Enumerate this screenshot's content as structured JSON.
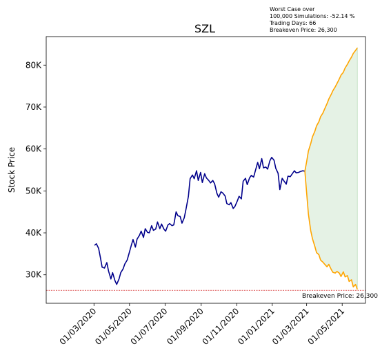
{
  "chart_data": {
    "type": "line",
    "title": "SZL",
    "xlabel": "",
    "ylabel": "Stock Price",
    "info_lines": [
      "Worst Case over",
      "100,000 Simulations: -52.14 %",
      "Trading Days: 66",
      "Breakeven Price: 26,300"
    ],
    "breakeven": {
      "value": 26300,
      "label": "Breakeven Price: 26,300",
      "color": "#cc0000"
    },
    "ylim": [
      23200,
      86800
    ],
    "xlim": [
      "2019-12-10",
      "2021-06-10"
    ],
    "y_ticks": [
      {
        "value": 30000,
        "label": "30K"
      },
      {
        "value": 40000,
        "label": "40K"
      },
      {
        "value": 50000,
        "label": "50K"
      },
      {
        "value": 60000,
        "label": "60K"
      },
      {
        "value": 70000,
        "label": "70K"
      },
      {
        "value": 80000,
        "label": "80K"
      }
    ],
    "x_ticks": [
      {
        "date": "2020-03-01",
        "label": "01/03/2020"
      },
      {
        "date": "2020-05-01",
        "label": "01/05/2020"
      },
      {
        "date": "2020-07-01",
        "label": "01/07/2020"
      },
      {
        "date": "2020-09-01",
        "label": "01/09/2020"
      },
      {
        "date": "2020-11-01",
        "label": "01/11/2020"
      },
      {
        "date": "2021-01-01",
        "label": "01/01/2021"
      },
      {
        "date": "2021-03-01",
        "label": "01/03/2021"
      },
      {
        "date": "2021-05-01",
        "label": "01/05/2021"
      }
    ],
    "series": [
      {
        "color": "#00008b",
        "points": [
          [
            "2020-03-02",
            37000
          ],
          [
            "2020-03-05",
            37400
          ],
          [
            "2020-03-09",
            36300
          ],
          [
            "2020-03-12",
            34100
          ],
          [
            "2020-03-15",
            31800
          ],
          [
            "2020-03-19",
            31600
          ],
          [
            "2020-03-23",
            32900
          ],
          [
            "2020-03-26",
            30900
          ],
          [
            "2020-03-30",
            29000
          ],
          [
            "2020-04-02",
            30500
          ],
          [
            "2020-04-06",
            28600
          ],
          [
            "2020-04-09",
            27700
          ],
          [
            "2020-04-13",
            29000
          ],
          [
            "2020-04-16",
            30500
          ],
          [
            "2020-04-20",
            31400
          ],
          [
            "2020-04-23",
            32600
          ],
          [
            "2020-04-27",
            33500
          ],
          [
            "2020-04-30",
            35000
          ],
          [
            "2020-05-04",
            37000
          ],
          [
            "2020-05-07",
            38400
          ],
          [
            "2020-05-11",
            36600
          ],
          [
            "2020-05-14",
            38500
          ],
          [
            "2020-05-18",
            39400
          ],
          [
            "2020-05-21",
            40400
          ],
          [
            "2020-05-25",
            38900
          ],
          [
            "2020-05-28",
            41000
          ],
          [
            "2020-06-01",
            40100
          ],
          [
            "2020-06-04",
            40000
          ],
          [
            "2020-06-08",
            41700
          ],
          [
            "2020-06-11",
            40600
          ],
          [
            "2020-06-15",
            40900
          ],
          [
            "2020-06-18",
            42600
          ],
          [
            "2020-06-22",
            41000
          ],
          [
            "2020-06-25",
            42100
          ],
          [
            "2020-06-29",
            40900
          ],
          [
            "2020-07-02",
            40400
          ],
          [
            "2020-07-06",
            41900
          ],
          [
            "2020-07-09",
            42200
          ],
          [
            "2020-07-13",
            41700
          ],
          [
            "2020-07-16",
            41900
          ],
          [
            "2020-07-20",
            45000
          ],
          [
            "2020-07-23",
            44100
          ],
          [
            "2020-07-27",
            43900
          ],
          [
            "2020-07-30",
            42300
          ],
          [
            "2020-08-03",
            43600
          ],
          [
            "2020-08-06",
            45700
          ],
          [
            "2020-08-10",
            48700
          ],
          [
            "2020-08-13",
            52900
          ],
          [
            "2020-08-17",
            53800
          ],
          [
            "2020-08-20",
            52900
          ],
          [
            "2020-08-24",
            54800
          ],
          [
            "2020-08-27",
            52500
          ],
          [
            "2020-08-31",
            54400
          ],
          [
            "2020-09-03",
            52000
          ],
          [
            "2020-09-07",
            54100
          ],
          [
            "2020-09-10",
            53100
          ],
          [
            "2020-09-14",
            52500
          ],
          [
            "2020-09-17",
            51900
          ],
          [
            "2020-09-21",
            52500
          ],
          [
            "2020-09-24",
            51700
          ],
          [
            "2020-09-28",
            49400
          ],
          [
            "2020-10-01",
            48500
          ],
          [
            "2020-10-05",
            49800
          ],
          [
            "2020-10-08",
            49500
          ],
          [
            "2020-10-12",
            48800
          ],
          [
            "2020-10-15",
            47000
          ],
          [
            "2020-10-19",
            46700
          ],
          [
            "2020-10-22",
            47200
          ],
          [
            "2020-10-26",
            45800
          ],
          [
            "2020-10-29",
            46300
          ],
          [
            "2020-11-02",
            47600
          ],
          [
            "2020-11-05",
            48700
          ],
          [
            "2020-11-09",
            48100
          ],
          [
            "2020-11-12",
            52300
          ],
          [
            "2020-11-16",
            53000
          ],
          [
            "2020-11-19",
            51500
          ],
          [
            "2020-11-23",
            53100
          ],
          [
            "2020-11-26",
            53700
          ],
          [
            "2020-11-30",
            53300
          ],
          [
            "2020-12-03",
            54800
          ],
          [
            "2020-12-07",
            56800
          ],
          [
            "2020-12-10",
            55300
          ],
          [
            "2020-12-14",
            57700
          ],
          [
            "2020-12-17",
            55500
          ],
          [
            "2020-12-21",
            55700
          ],
          [
            "2020-12-24",
            55200
          ],
          [
            "2020-12-28",
            57200
          ],
          [
            "2020-12-31",
            58000
          ],
          [
            "2021-01-04",
            57300
          ],
          [
            "2021-01-07",
            55400
          ],
          [
            "2021-01-11",
            54200
          ],
          [
            "2021-01-14",
            50300
          ],
          [
            "2021-01-18",
            53000
          ],
          [
            "2021-01-21",
            52400
          ],
          [
            "2021-01-25",
            51600
          ],
          [
            "2021-01-28",
            53500
          ],
          [
            "2021-02-01",
            53400
          ],
          [
            "2021-02-04",
            54000
          ],
          [
            "2021-02-08",
            54800
          ],
          [
            "2021-02-11",
            54300
          ],
          [
            "2021-02-15",
            54400
          ],
          [
            "2021-02-18",
            54600
          ],
          [
            "2021-02-22",
            54800
          ],
          [
            "2021-02-26",
            54700
          ]
        ]
      },
      {
        "color": "#ffa500",
        "points": [
          [
            "2021-02-26",
            54700
          ],
          [
            "2021-03-01",
            57000
          ],
          [
            "2021-03-04",
            59500
          ],
          [
            "2021-03-08",
            61300
          ],
          [
            "2021-03-11",
            62900
          ],
          [
            "2021-03-15",
            64200
          ],
          [
            "2021-03-18",
            65500
          ],
          [
            "2021-03-22",
            66500
          ],
          [
            "2021-03-25",
            67700
          ],
          [
            "2021-03-29",
            68600
          ],
          [
            "2021-04-01",
            69600
          ],
          [
            "2021-04-05",
            70800
          ],
          [
            "2021-04-08",
            71900
          ],
          [
            "2021-04-12",
            73000
          ],
          [
            "2021-04-15",
            73900
          ],
          [
            "2021-04-19",
            74800
          ],
          [
            "2021-04-22",
            75600
          ],
          [
            "2021-04-26",
            76700
          ],
          [
            "2021-04-29",
            77600
          ],
          [
            "2021-05-03",
            78300
          ],
          [
            "2021-05-06",
            79300
          ],
          [
            "2021-05-10",
            80200
          ],
          [
            "2021-05-13",
            81000
          ],
          [
            "2021-05-17",
            81900
          ],
          [
            "2021-05-20",
            82800
          ],
          [
            "2021-05-24",
            83500
          ],
          [
            "2021-05-27",
            84100
          ]
        ]
      },
      {
        "color": "#ffa500",
        "points": [
          [
            "2021-02-26",
            54700
          ],
          [
            "2021-03-01",
            49500
          ],
          [
            "2021-03-04",
            44500
          ],
          [
            "2021-03-08",
            40500
          ],
          [
            "2021-03-11",
            38600
          ],
          [
            "2021-03-15",
            36800
          ],
          [
            "2021-03-18",
            35300
          ],
          [
            "2021-03-22",
            34800
          ],
          [
            "2021-03-25",
            33500
          ],
          [
            "2021-03-29",
            33000
          ],
          [
            "2021-04-01",
            32500
          ],
          [
            "2021-04-05",
            31900
          ],
          [
            "2021-04-08",
            32500
          ],
          [
            "2021-04-12",
            31300
          ],
          [
            "2021-04-15",
            30600
          ],
          [
            "2021-04-19",
            30400
          ],
          [
            "2021-04-22",
            30800
          ],
          [
            "2021-04-26",
            30400
          ],
          [
            "2021-04-29",
            29600
          ],
          [
            "2021-05-03",
            30700
          ],
          [
            "2021-05-06",
            29500
          ],
          [
            "2021-05-10",
            29800
          ],
          [
            "2021-05-13",
            28400
          ],
          [
            "2021-05-17",
            28800
          ],
          [
            "2021-05-20",
            27100
          ],
          [
            "2021-05-24",
            27700
          ],
          [
            "2021-05-27",
            26500
          ]
        ]
      }
    ],
    "band": {
      "color": "#e5f2e5",
      "edge": "#b7dcb7",
      "upper_series": 1,
      "lower_series": 2
    },
    "grid": false,
    "legend": "none"
  }
}
